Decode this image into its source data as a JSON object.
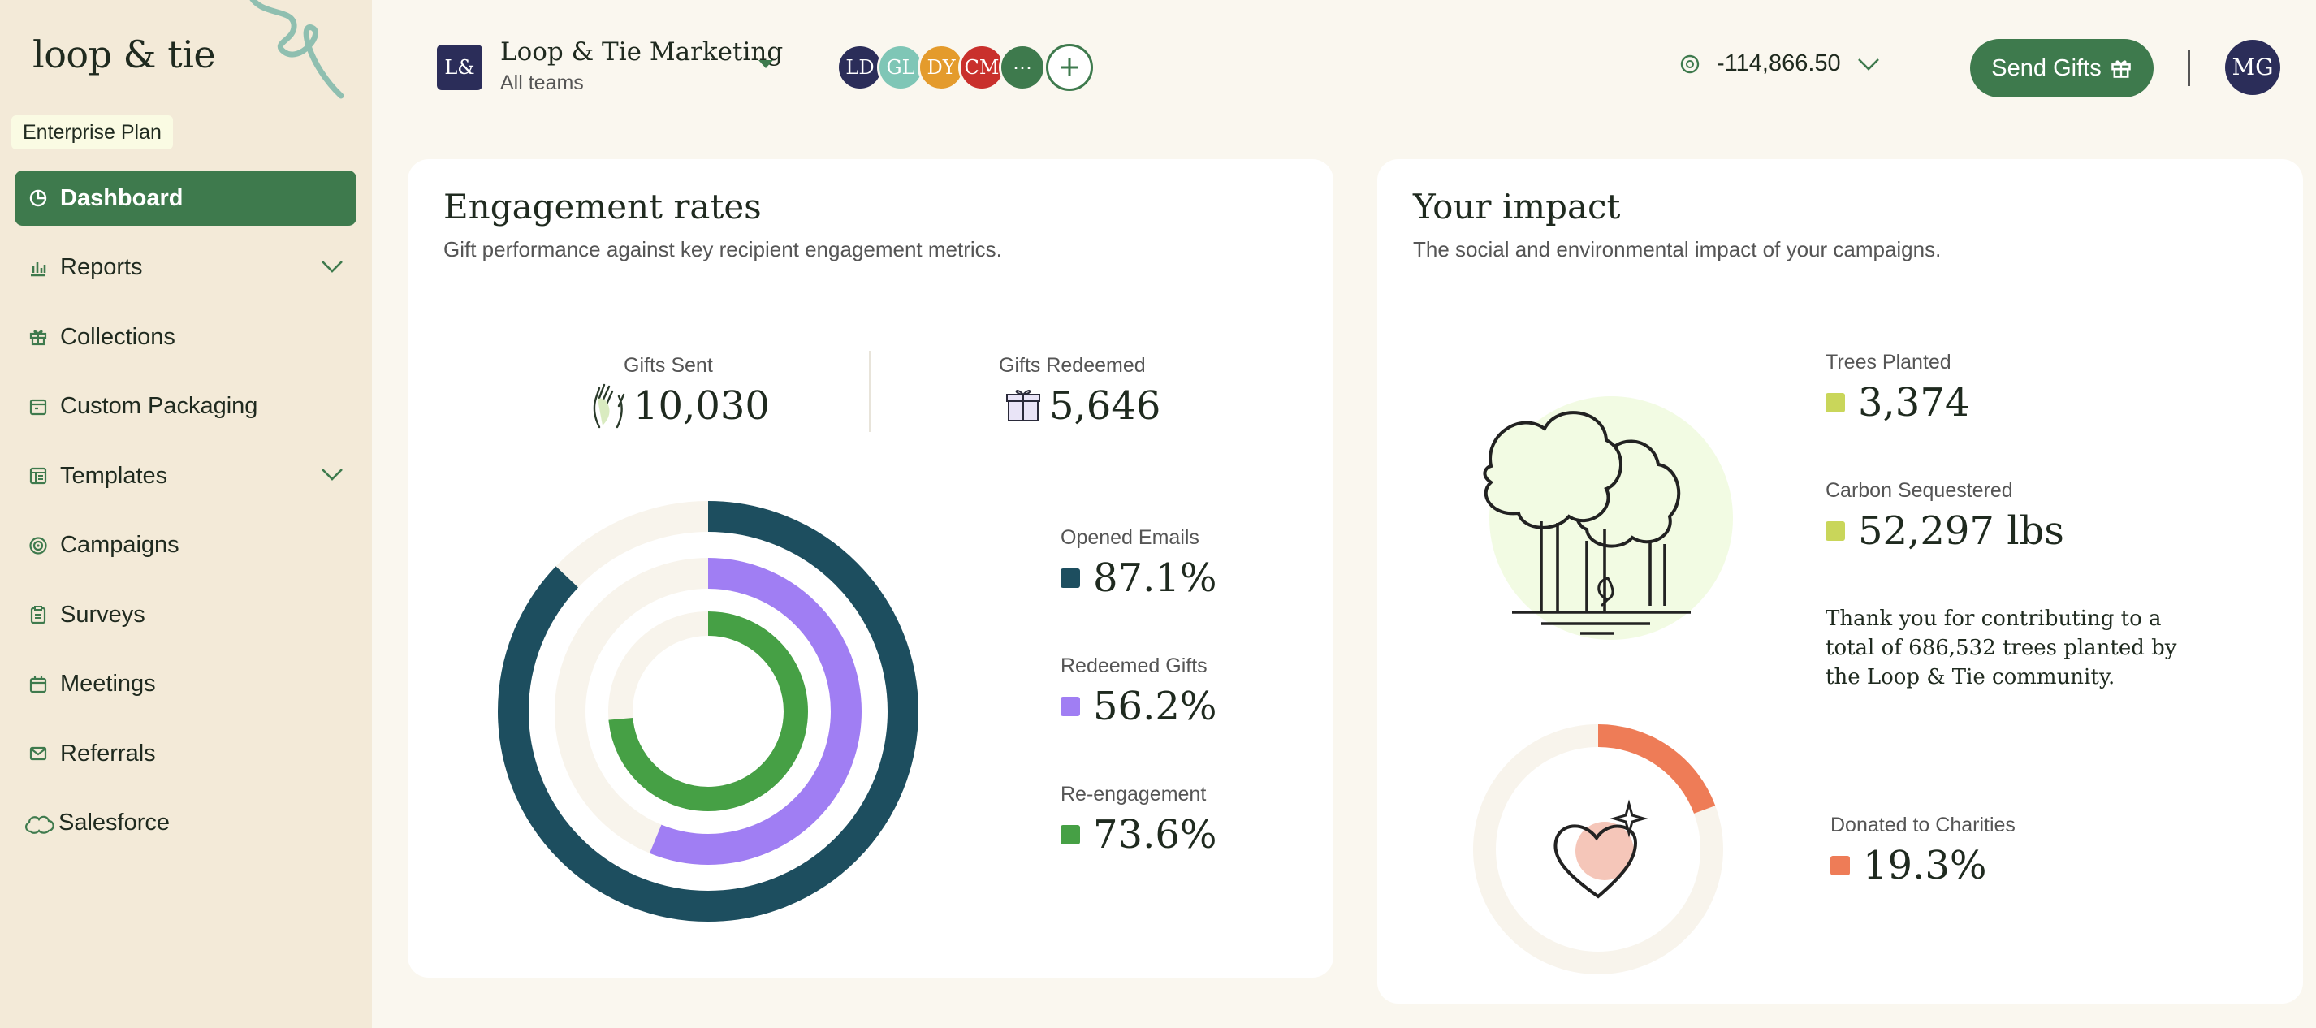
{
  "brand": {
    "logo_text": "loop & tie",
    "plan": "Enterprise Plan"
  },
  "sidebar": {
    "items": [
      {
        "label": "Dashboard",
        "icon": "pie-chart-icon",
        "active": true
      },
      {
        "label": "Reports",
        "icon": "bar-chart-icon",
        "expandable": true
      },
      {
        "label": "Collections",
        "icon": "gift-icon"
      },
      {
        "label": "Custom Packaging",
        "icon": "package-icon"
      },
      {
        "label": "Templates",
        "icon": "template-icon",
        "expandable": true
      },
      {
        "label": "Campaigns",
        "icon": "target-icon"
      },
      {
        "label": "Surveys",
        "icon": "clipboard-icon"
      },
      {
        "label": "Meetings",
        "icon": "calendar-icon"
      },
      {
        "label": "Referrals",
        "icon": "envelope-icon"
      },
      {
        "label": "Salesforce",
        "icon": "salesforce-cloud-icon"
      }
    ]
  },
  "header": {
    "org_logo": "L&",
    "org_name": "Loop & Tie Marketing",
    "org_sub": "All teams",
    "members": [
      {
        "initials": "LD",
        "color": "#2b2d59"
      },
      {
        "initials": "GL",
        "color": "#7fc6b6"
      },
      {
        "initials": "DY",
        "color": "#e49b2c"
      },
      {
        "initials": "CM",
        "color": "#c9302c"
      },
      {
        "initials": "⋯",
        "color": "#3e7a4d"
      }
    ],
    "balance": "-114,866.50",
    "send_label": "Send Gifts",
    "user_initials": "MG"
  },
  "engagement": {
    "title": "Engagement rates",
    "subtitle": "Gift performance against key recipient engagement metrics.",
    "gifts_sent_label": "Gifts Sent",
    "gifts_sent_value": "10,030",
    "gifts_redeemed_label": "Gifts Redeemed",
    "gifts_redeemed_value": "5,646",
    "legend": [
      {
        "label": "Opened Emails",
        "value": "87.1%",
        "color": "#1d4e5f"
      },
      {
        "label": "Redeemed Gifts",
        "value": "56.2%",
        "color": "#a07ef3"
      },
      {
        "label": "Re-engagement",
        "value": "73.6%",
        "color": "#46a045"
      }
    ]
  },
  "impact": {
    "title": "Your impact",
    "subtitle": "The social and environmental impact of your campaigns.",
    "trees_label": "Trees Planted",
    "trees_value": "3,374",
    "carbon_label": "Carbon Sequestered",
    "carbon_value": "52,297 lbs",
    "message": "Thank you for contributing to a total of 686,532 trees planted by the Loop & Tie community.",
    "donated_label": "Donated to Charities",
    "donated_value": "19.3%",
    "donated_fraction": 0.193,
    "metric_color": "#c9d65a",
    "donated_color": "#ee7c57"
  },
  "chart_data": {
    "type": "pie",
    "series": [
      {
        "name": "Opened Emails",
        "value": 87.1
      },
      {
        "name": "Redeemed Gifts",
        "value": 56.2
      },
      {
        "name": "Re-engagement",
        "value": 73.6
      }
    ]
  }
}
